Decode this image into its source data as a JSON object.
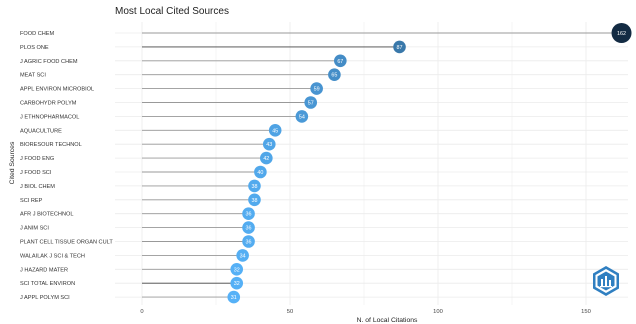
{
  "chart_data": {
    "type": "lollipop",
    "title": "Most Local Cited Sources",
    "xlabel": "N. of Local Citations",
    "ylabel": "Cited Sources",
    "xlim": [
      0,
      165
    ],
    "xticks": [
      "0",
      "50",
      "100",
      "150"
    ],
    "grid": true,
    "legend": "none",
    "categories": [
      "FOOD CHEM",
      "PLOS ONE",
      "J AGRIC FOOD CHEM",
      "MEAT SCI",
      "APPL ENVIRON MICROBIOL",
      "CARBOHYDR POLYM",
      "J ETHNOPHARMACOL",
      "AQUACULTURE",
      "BIORESOUR TECHNOL",
      "J FOOD ENG",
      "J FOOD SCI",
      "J BIOL CHEM",
      "SCI REP",
      "AFR J BIOTECHNOL",
      "J ANIM SCI",
      "PLANT CELL TISSUE ORGAN CULT",
      "WALAILAK J SCI & TECH",
      "J HAZARD MATER",
      "SCI TOTAL ENVIRON",
      "J APPL POLYM SCI"
    ],
    "values": [
      162,
      87,
      67,
      65,
      59,
      57,
      54,
      45,
      43,
      42,
      40,
      38,
      38,
      36,
      36,
      36,
      34,
      32,
      32,
      31
    ],
    "value_labels": [
      "162",
      "87",
      "67",
      "65",
      "59",
      "57",
      "54",
      "45",
      "43",
      "42",
      "40",
      "38",
      "38",
      "36",
      "36",
      "36",
      "34",
      "32",
      "32",
      "31"
    ],
    "colors": {
      "dark": "#132b43",
      "light": "#56b1f7",
      "stem": "#999999",
      "grid": "#ebebeb",
      "stem_dark": "#444444"
    }
  },
  "logo": {
    "icon": "bibliometrix-logo-icon",
    "color": "#2f7fc1"
  }
}
